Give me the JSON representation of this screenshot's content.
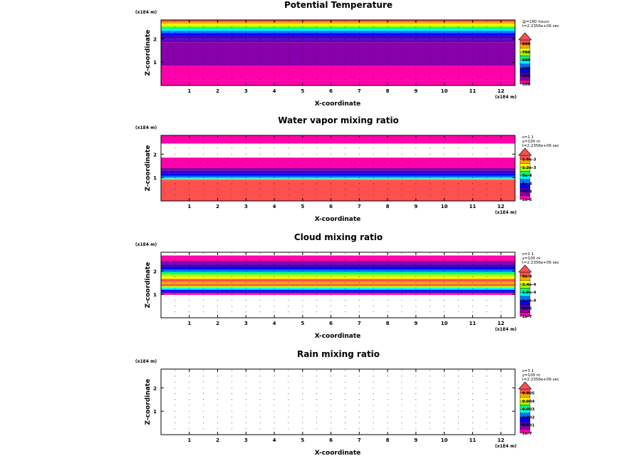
{
  "chart_data": [
    {
      "type": "heatmap",
      "title": "Potential Temperature",
      "xlabel": "X-coordinate",
      "ylabel": "Z-coordinate",
      "x_unit": "(x1E4 m)",
      "z_unit": "(x1E4 m)",
      "xlim": [
        0,
        12.5
      ],
      "zlim": [
        0,
        2.8
      ],
      "xticks": [
        "1",
        "2",
        "3",
        "4",
        "5",
        "6",
        "7",
        "8",
        "9",
        "10",
        "11",
        "12"
      ],
      "zticks": [
        "1",
        "2"
      ],
      "info": [
        "@=180 hours",
        "t=2.2356e+06 sec"
      ],
      "colorbar": {
        "labels": [
          "300",
          "400",
          "500",
          "600",
          "700",
          "800"
        ],
        "colors": [
          "#ff00aa",
          "#8800aa",
          "#3a00c0",
          "#0000ff",
          "#0077ff",
          "#00ffff",
          "#00ff77",
          "#aaff00",
          "#ffff00",
          "#ffaa00",
          "#ff5050"
        ]
      },
      "bands": [
        {
          "z0": 0.0,
          "z1": 0.24,
          "color": "#ff00aa"
        },
        {
          "z0": 0.24,
          "z1": 0.85,
          "color": "#ff00aa"
        },
        {
          "z0": 0.85,
          "z1": 1.85,
          "color": "#8800aa"
        },
        {
          "z0": 1.85,
          "z1": 2.0,
          "color": "#6600bb"
        },
        {
          "z0": 2.0,
          "z1": 2.12,
          "color": "#3a00c0"
        },
        {
          "z0": 2.12,
          "z1": 2.24,
          "color": "#0000ff"
        },
        {
          "z0": 2.24,
          "z1": 2.34,
          "color": "#0077ff"
        },
        {
          "z0": 2.34,
          "z1": 2.42,
          "color": "#00ffff"
        },
        {
          "z0": 2.42,
          "z1": 2.5,
          "color": "#00ff77"
        },
        {
          "z0": 2.5,
          "z1": 2.57,
          "color": "#aaff00"
        },
        {
          "z0": 2.57,
          "z1": 2.64,
          "color": "#ffff00"
        },
        {
          "z0": 2.64,
          "z1": 2.72,
          "color": "#ffaa00"
        },
        {
          "z0": 2.72,
          "z1": 2.8,
          "color": "#ff5050"
        }
      ]
    },
    {
      "type": "heatmap",
      "title": "Water vapor mixing ratio",
      "xlabel": "X-coordinate",
      "ylabel": "Z-coordinate",
      "x_unit": "(x1E4 m)",
      "z_unit": "(x1E4 m)",
      "xlim": [
        0,
        12.5
      ],
      "zlim": [
        0,
        2.8
      ],
      "xticks": [
        "1",
        "2",
        "3",
        "4",
        "5",
        "6",
        "7",
        "8",
        "9",
        "10",
        "11",
        "12"
      ],
      "zticks": [
        "1",
        "2"
      ],
      "info": [
        "s=1 1",
        "y=100 m",
        "t=2.2356e+06 sec"
      ],
      "colorbar": {
        "labels": [
          "1e-6",
          "3e-4",
          "6e-4",
          "9e-4",
          "1.2e-3",
          "1.5e-3"
        ],
        "colors": [
          "#ff00aa",
          "#8800aa",
          "#3a00c0",
          "#0000ff",
          "#0077ff",
          "#00ffff",
          "#00ff77",
          "#aaff00",
          "#ffff00",
          "#ffaa00",
          "#ff5050"
        ]
      },
      "bands": [
        {
          "z0": 0.0,
          "z1": 0.9,
          "color": "#ff5050"
        },
        {
          "z0": 0.9,
          "z1": 0.95,
          "color": "#ffaa00"
        },
        {
          "z0": 0.95,
          "z1": 1.0,
          "color": "#00ffff"
        },
        {
          "z0": 1.0,
          "z1": 1.08,
          "color": "#0077ff"
        },
        {
          "z0": 1.08,
          "z1": 1.18,
          "color": "#0000ff"
        },
        {
          "z0": 1.18,
          "z1": 1.3,
          "color": "#3a00c0"
        },
        {
          "z0": 1.3,
          "z1": 1.42,
          "color": "#8800aa"
        },
        {
          "z0": 1.42,
          "z1": 1.85,
          "color": "#ff00aa"
        },
        {
          "z0": 2.45,
          "z1": 2.8,
          "color": "#ff00aa"
        }
      ]
    },
    {
      "type": "heatmap",
      "title": "Cloud mixing ratio",
      "xlabel": "X-coordinate",
      "ylabel": "Z-coordinate",
      "x_unit": "(x1E4 m)",
      "z_unit": "(x1E4 m)",
      "xlim": [
        0,
        12.5
      ],
      "zlim": [
        0,
        2.8
      ],
      "xticks": [
        "1",
        "2",
        "3",
        "4",
        "5",
        "6",
        "7",
        "8",
        "9",
        "10",
        "11",
        "12"
      ],
      "zticks": [
        "1",
        "2"
      ],
      "info": [
        "s=2 1",
        "y=100 m",
        "t=2.2356e+06 sec"
      ],
      "colorbar": {
        "labels": [
          "1e-7",
          "6e-5",
          "1.2e-4",
          "1.8e-4",
          "2.4e-4",
          "3e-4"
        ],
        "colors": [
          "#ff00aa",
          "#8800aa",
          "#3a00c0",
          "#0000ff",
          "#0077ff",
          "#00ffff",
          "#00ff77",
          "#aaff00",
          "#ffff00",
          "#ffaa00",
          "#ff5050"
        ]
      },
      "bands": [
        {
          "z0": 0.98,
          "z1": 1.06,
          "color": "#ff00aa"
        },
        {
          "z0": 1.06,
          "z1": 1.12,
          "color": "#3a00c0"
        },
        {
          "z0": 1.12,
          "z1": 1.2,
          "color": "#0000ff"
        },
        {
          "z0": 1.2,
          "z1": 1.28,
          "color": "#00ffff"
        },
        {
          "z0": 1.28,
          "z1": 1.36,
          "color": "#aaff00"
        },
        {
          "z0": 1.36,
          "z1": 1.44,
          "color": "#ff5050"
        },
        {
          "z0": 1.44,
          "z1": 1.54,
          "color": "#ffaa00"
        },
        {
          "z0": 1.54,
          "z1": 1.66,
          "color": "#ff5050"
        },
        {
          "z0": 1.66,
          "z1": 1.76,
          "color": "#ffff00"
        },
        {
          "z0": 1.76,
          "z1": 1.86,
          "color": "#aaff00"
        },
        {
          "z0": 1.86,
          "z1": 1.96,
          "color": "#00ff77"
        },
        {
          "z0": 1.96,
          "z1": 2.06,
          "color": "#0077ff"
        },
        {
          "z0": 2.06,
          "z1": 2.16,
          "color": "#0000ff"
        },
        {
          "z0": 2.16,
          "z1": 2.28,
          "color": "#3a00c0"
        },
        {
          "z0": 2.28,
          "z1": 2.42,
          "color": "#8800aa"
        },
        {
          "z0": 2.42,
          "z1": 2.55,
          "color": "#ff00aa"
        },
        {
          "z0": 2.55,
          "z1": 2.66,
          "color": "#ff00aa"
        }
      ]
    },
    {
      "type": "heatmap",
      "title": "Rain mixing ratio",
      "xlabel": "X-coordinate",
      "ylabel": "Z-coordinate",
      "x_unit": "(x1E4 m)",
      "z_unit": "(x1E4 m)",
      "xlim": [
        0,
        12.5
      ],
      "zlim": [
        0,
        2.8
      ],
      "xticks": [
        "1",
        "2",
        "3",
        "4",
        "5",
        "6",
        "7",
        "8",
        "9",
        "10",
        "11",
        "12"
      ],
      "zticks": [
        "1",
        "2"
      ],
      "info": [
        "s=3 1",
        "y=100 m",
        "t=2.2356e+06 sec"
      ],
      "colorbar": {
        "labels": [
          "1e-7",
          "0.001",
          "0.002",
          "0.003",
          "0.004",
          "0.005"
        ],
        "colors": [
          "#ff00aa",
          "#8800aa",
          "#3a00c0",
          "#0000ff",
          "#0077ff",
          "#00ffff",
          "#00ff77",
          "#aaff00",
          "#ffff00",
          "#ffaa00",
          "#ff5050"
        ]
      },
      "bands": []
    }
  ]
}
